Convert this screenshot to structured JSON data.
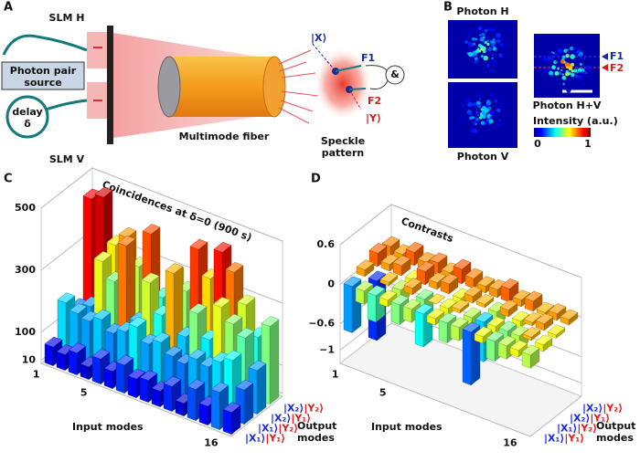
{
  "panel_a": {
    "label": "A",
    "slm_h": "SLM H",
    "slm_v": "SLM V",
    "source": "Photon pair source",
    "delay": "delay δ",
    "fiber": "Multimode fiber",
    "speckle": "Speckle pattern",
    "ket_x": "|X⟩",
    "ket_y": "|Y⟩",
    "f1": "F1",
    "f2": "F2",
    "and": "&"
  },
  "panel_b": {
    "label": "B",
    "photon_h": "Photon H",
    "photon_v": "Photon V",
    "photon_hv": "Photon H+V",
    "f1": "F1",
    "f2": "F2",
    "colorbar_title": "Intensity (a.u.)",
    "colorbar_min": "0",
    "colorbar_max": "1"
  },
  "chart_data": [
    {
      "type": "bar3d",
      "label": "C",
      "title": "Coincidences at δ=0 (900 s)",
      "x_label": "Input modes",
      "y_label": "Output modes",
      "colormap": "jet",
      "categories": [
        "1",
        null,
        null,
        null,
        "5",
        null,
        null,
        null,
        null,
        null,
        null,
        null,
        null,
        null,
        null,
        "16"
      ],
      "series": [
        {
          "name": "|X₁⟩|Y₁⟩",
          "values": [
            60,
            50,
            70,
            40,
            80,
            55,
            90,
            60,
            70,
            50,
            80,
            40,
            100,
            60,
            120,
            70
          ]
        },
        {
          "name": "|X₁⟩|Y₂⟩",
          "values": [
            170,
            150,
            140,
            160,
            130,
            150,
            180,
            140,
            160,
            130,
            120,
            150,
            140,
            170,
            190,
            110
          ]
        },
        {
          "name": "|X₂⟩|Y₁⟩",
          "values": [
            120,
            140,
            300,
            250,
            380,
            150,
            290,
            200,
            350,
            160,
            250,
            180,
            300,
            260,
            230,
            140
          ]
        },
        {
          "name": "|X₂⟩|Y₂⟩",
          "values": [
            440,
            460,
            320,
            360,
            280,
            400,
            210,
            300,
            260,
            410,
            330,
            430,
            380,
            290,
            200,
            250
          ]
        }
      ],
      "ylim": [
        0,
        500
      ],
      "yticks": [
        10,
        100,
        300,
        500
      ],
      "grid": true
    },
    {
      "type": "bar3d",
      "label": "D",
      "title": "Contrasts",
      "x_label": "Input modes",
      "y_label": "Output modes",
      "colormap": "jet",
      "categories": [
        "1",
        null,
        null,
        null,
        "5",
        null,
        null,
        null,
        null,
        null,
        null,
        null,
        null,
        null,
        null,
        "16"
      ],
      "series": [
        {
          "name": "|X₁⟩|Y₁⟩",
          "values": [
            -0.7,
            -0.2,
            -0.4,
            -0.1,
            -0.3,
            -0.2,
            -0.5,
            -0.1,
            -0.3,
            -0.2,
            -0.8,
            -0.1,
            -0.3,
            -0.2,
            -0.1,
            -0.2
          ]
        },
        {
          "name": "|X₁⟩|Y₂⟩",
          "values": [
            0.1,
            -0.9,
            0.05,
            -0.2,
            0.1,
            -0.3,
            0.0,
            -0.1,
            0.05,
            -0.2,
            -0.6,
            -0.1,
            -0.3,
            -0.2,
            0.05,
            -0.1
          ]
        },
        {
          "name": "|X₂⟩|Y₁⟩",
          "values": [
            0.2,
            0.1,
            0.15,
            -0.1,
            0.2,
            0.1,
            0.15,
            -0.1,
            0.1,
            0.05,
            -0.2,
            0.1,
            -0.1,
            0.05,
            0.1,
            -0.05
          ]
        },
        {
          "name": "|X₂⟩|Y₂⟩",
          "values": [
            0.15,
            0.1,
            0.2,
            0.12,
            0.18,
            0.1,
            0.22,
            0.15,
            0.1,
            0.12,
            0.2,
            0.1,
            0.15,
            0.05,
            0.1,
            0.08
          ]
        }
      ],
      "ylim": [
        -1.2,
        0.6
      ],
      "yticks": [
        0.6,
        0,
        {
          "value": -0.6,
          "label": "−0.6"
        },
        {
          "value": -1,
          "label": "−1"
        }
      ],
      "grid": true
    }
  ]
}
